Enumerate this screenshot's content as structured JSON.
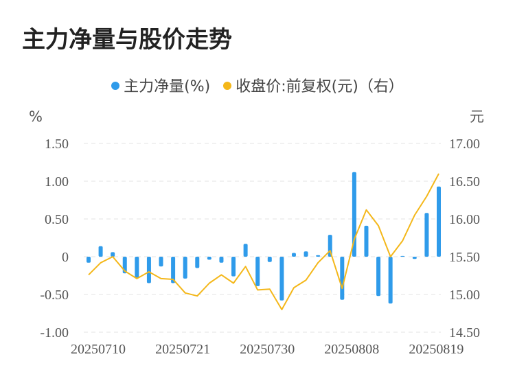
{
  "title": "主力净量与股价走势",
  "legend": [
    {
      "label": "主力净量(%)",
      "color": "#2f9bea"
    },
    {
      "label": "收盘价:前复权(元)（右）",
      "color": "#f4b719"
    }
  ],
  "chart_data": {
    "type": "bar+line",
    "left_unit": "%",
    "right_unit": "元",
    "left_ylim": [
      -1.0,
      1.5
    ],
    "right_ylim": [
      14.5,
      17.0
    ],
    "left_ticks": [
      "1.50",
      "1.00",
      "0.50",
      "0",
      "-0.50",
      "-1.00"
    ],
    "left_tick_values": [
      1.5,
      1.0,
      0.5,
      0,
      -0.5,
      -1.0
    ],
    "right_ticks": [
      "17.00",
      "16.50",
      "16.00",
      "15.50",
      "15.00",
      "14.50"
    ],
    "right_tick_values": [
      17.0,
      16.5,
      16.0,
      15.5,
      15.0,
      14.5
    ],
    "x_tick_labels": [
      "20250710",
      "20250721",
      "20250730",
      "20250808",
      "20250819"
    ],
    "x_tick_indices": [
      0,
      7,
      14,
      21,
      28
    ],
    "grid": true,
    "series": [
      {
        "name": "主力净量(%)",
        "type": "bar",
        "color": "#2f9bea",
        "values": [
          -0.08,
          0.14,
          0.06,
          -0.22,
          -0.28,
          -0.35,
          -0.13,
          -0.35,
          -0.29,
          -0.15,
          -0.04,
          -0.08,
          -0.26,
          0.17,
          -0.39,
          -0.07,
          -0.58,
          0.05,
          0.07,
          0.02,
          0.29,
          -0.57,
          1.12,
          0.41,
          -0.52,
          -0.62,
          0.01,
          -0.03,
          0.58,
          0.93
        ]
      },
      {
        "name": "收盘价:前复权(元)（右）",
        "type": "line",
        "color": "#f4b719",
        "values": [
          15.26,
          15.42,
          15.5,
          15.31,
          15.21,
          15.3,
          15.21,
          15.2,
          15.02,
          14.98,
          15.15,
          15.26,
          15.15,
          15.37,
          15.06,
          15.07,
          14.8,
          15.09,
          15.19,
          15.42,
          15.58,
          15.08,
          15.73,
          16.12,
          15.91,
          15.5,
          15.71,
          16.05,
          16.3,
          16.6
        ]
      }
    ]
  }
}
